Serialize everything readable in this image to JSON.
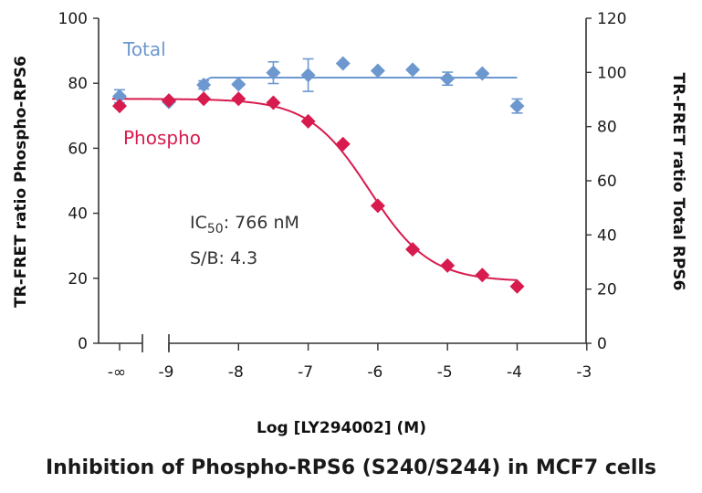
{
  "chart_data": {
    "type": "scatter",
    "xlabel": "Log [LY294002] (M)",
    "ylabel_left": "TR-FRET ratio Phospho-RPS6",
    "ylabel_right": "TR-FRET ratio Total RPS6",
    "caption": "Inhibition of Phospho-RPS6 (S240/S244) in MCF7 cells",
    "x_ticks": [
      {
        "v": -9,
        "label": "-9"
      },
      {
        "v": -8,
        "label": "-8"
      },
      {
        "v": -7,
        "label": "-7"
      },
      {
        "v": -6,
        "label": "-6"
      },
      {
        "v": -5,
        "label": "-5"
      },
      {
        "v": -4,
        "label": "-4"
      },
      {
        "v": -3,
        "label": "-3"
      }
    ],
    "x_break_label": "-∞",
    "ylim_left": [
      0,
      100
    ],
    "y_ticks_left": [
      "0",
      "20",
      "40",
      "60",
      "80",
      "100"
    ],
    "ylim_right": [
      0,
      120
    ],
    "y_ticks_right": [
      "0",
      "20",
      "40",
      "60",
      "80",
      "100",
      "120"
    ],
    "series": [
      {
        "name": "Total",
        "color": "#6d98cf",
        "axis": "right",
        "baseline": {
          "x": "-∞",
          "y": 91.2,
          "err": 2.4
        },
        "points": [
          {
            "x": -9.0,
            "y": 89.1,
            "err": 0
          },
          {
            "x": -8.5,
            "y": 95.4,
            "err": 1.5
          },
          {
            "x": -8.0,
            "y": 95.6,
            "err": 0.6
          },
          {
            "x": -7.5,
            "y": 99.9,
            "err": 4.0
          },
          {
            "x": -7.0,
            "y": 99.0,
            "err": 6.0
          },
          {
            "x": -6.5,
            "y": 103.3,
            "err": 0
          },
          {
            "x": -6.0,
            "y": 100.6,
            "err": 0
          },
          {
            "x": -5.5,
            "y": 101.0,
            "err": 0
          },
          {
            "x": -5.0,
            "y": 97.7,
            "err": 2.4
          },
          {
            "x": -4.5,
            "y": 99.6,
            "err": 0
          },
          {
            "x": -4.0,
            "y": 87.6,
            "err": 2.6
          }
        ],
        "fit": {
          "kind": "flat",
          "x_start": -8.5,
          "x_end": -4.0,
          "y": 98.1
        }
      },
      {
        "name": "Phospho",
        "color": "#d81b4e",
        "axis": "left",
        "baseline": {
          "x": "-∞",
          "y": 73.0
        },
        "points": [
          {
            "x": -9.0,
            "y": 74.7
          },
          {
            "x": -8.5,
            "y": 75.2
          },
          {
            "x": -8.0,
            "y": 75.2
          },
          {
            "x": -7.5,
            "y": 74.0
          },
          {
            "x": -7.0,
            "y": 68.3
          },
          {
            "x": -6.5,
            "y": 61.3
          },
          {
            "x": -6.0,
            "y": 42.3
          },
          {
            "x": -5.5,
            "y": 28.9
          },
          {
            "x": -5.0,
            "y": 23.9
          },
          {
            "x": -4.5,
            "y": 21.0
          },
          {
            "x": -4.0,
            "y": 17.5
          }
        ],
        "fit": {
          "kind": "logistic",
          "top": 75.2,
          "bottom": 19.0,
          "logIC50": -6.12,
          "hill": 1.0,
          "x_start": -9.6,
          "x_end": -4.0
        }
      }
    ],
    "annotations": [
      {
        "prefix": "IC",
        "sub": "50",
        "suffix": ": 766 nM"
      },
      {
        "text": "S/B: 4.3"
      }
    ]
  }
}
